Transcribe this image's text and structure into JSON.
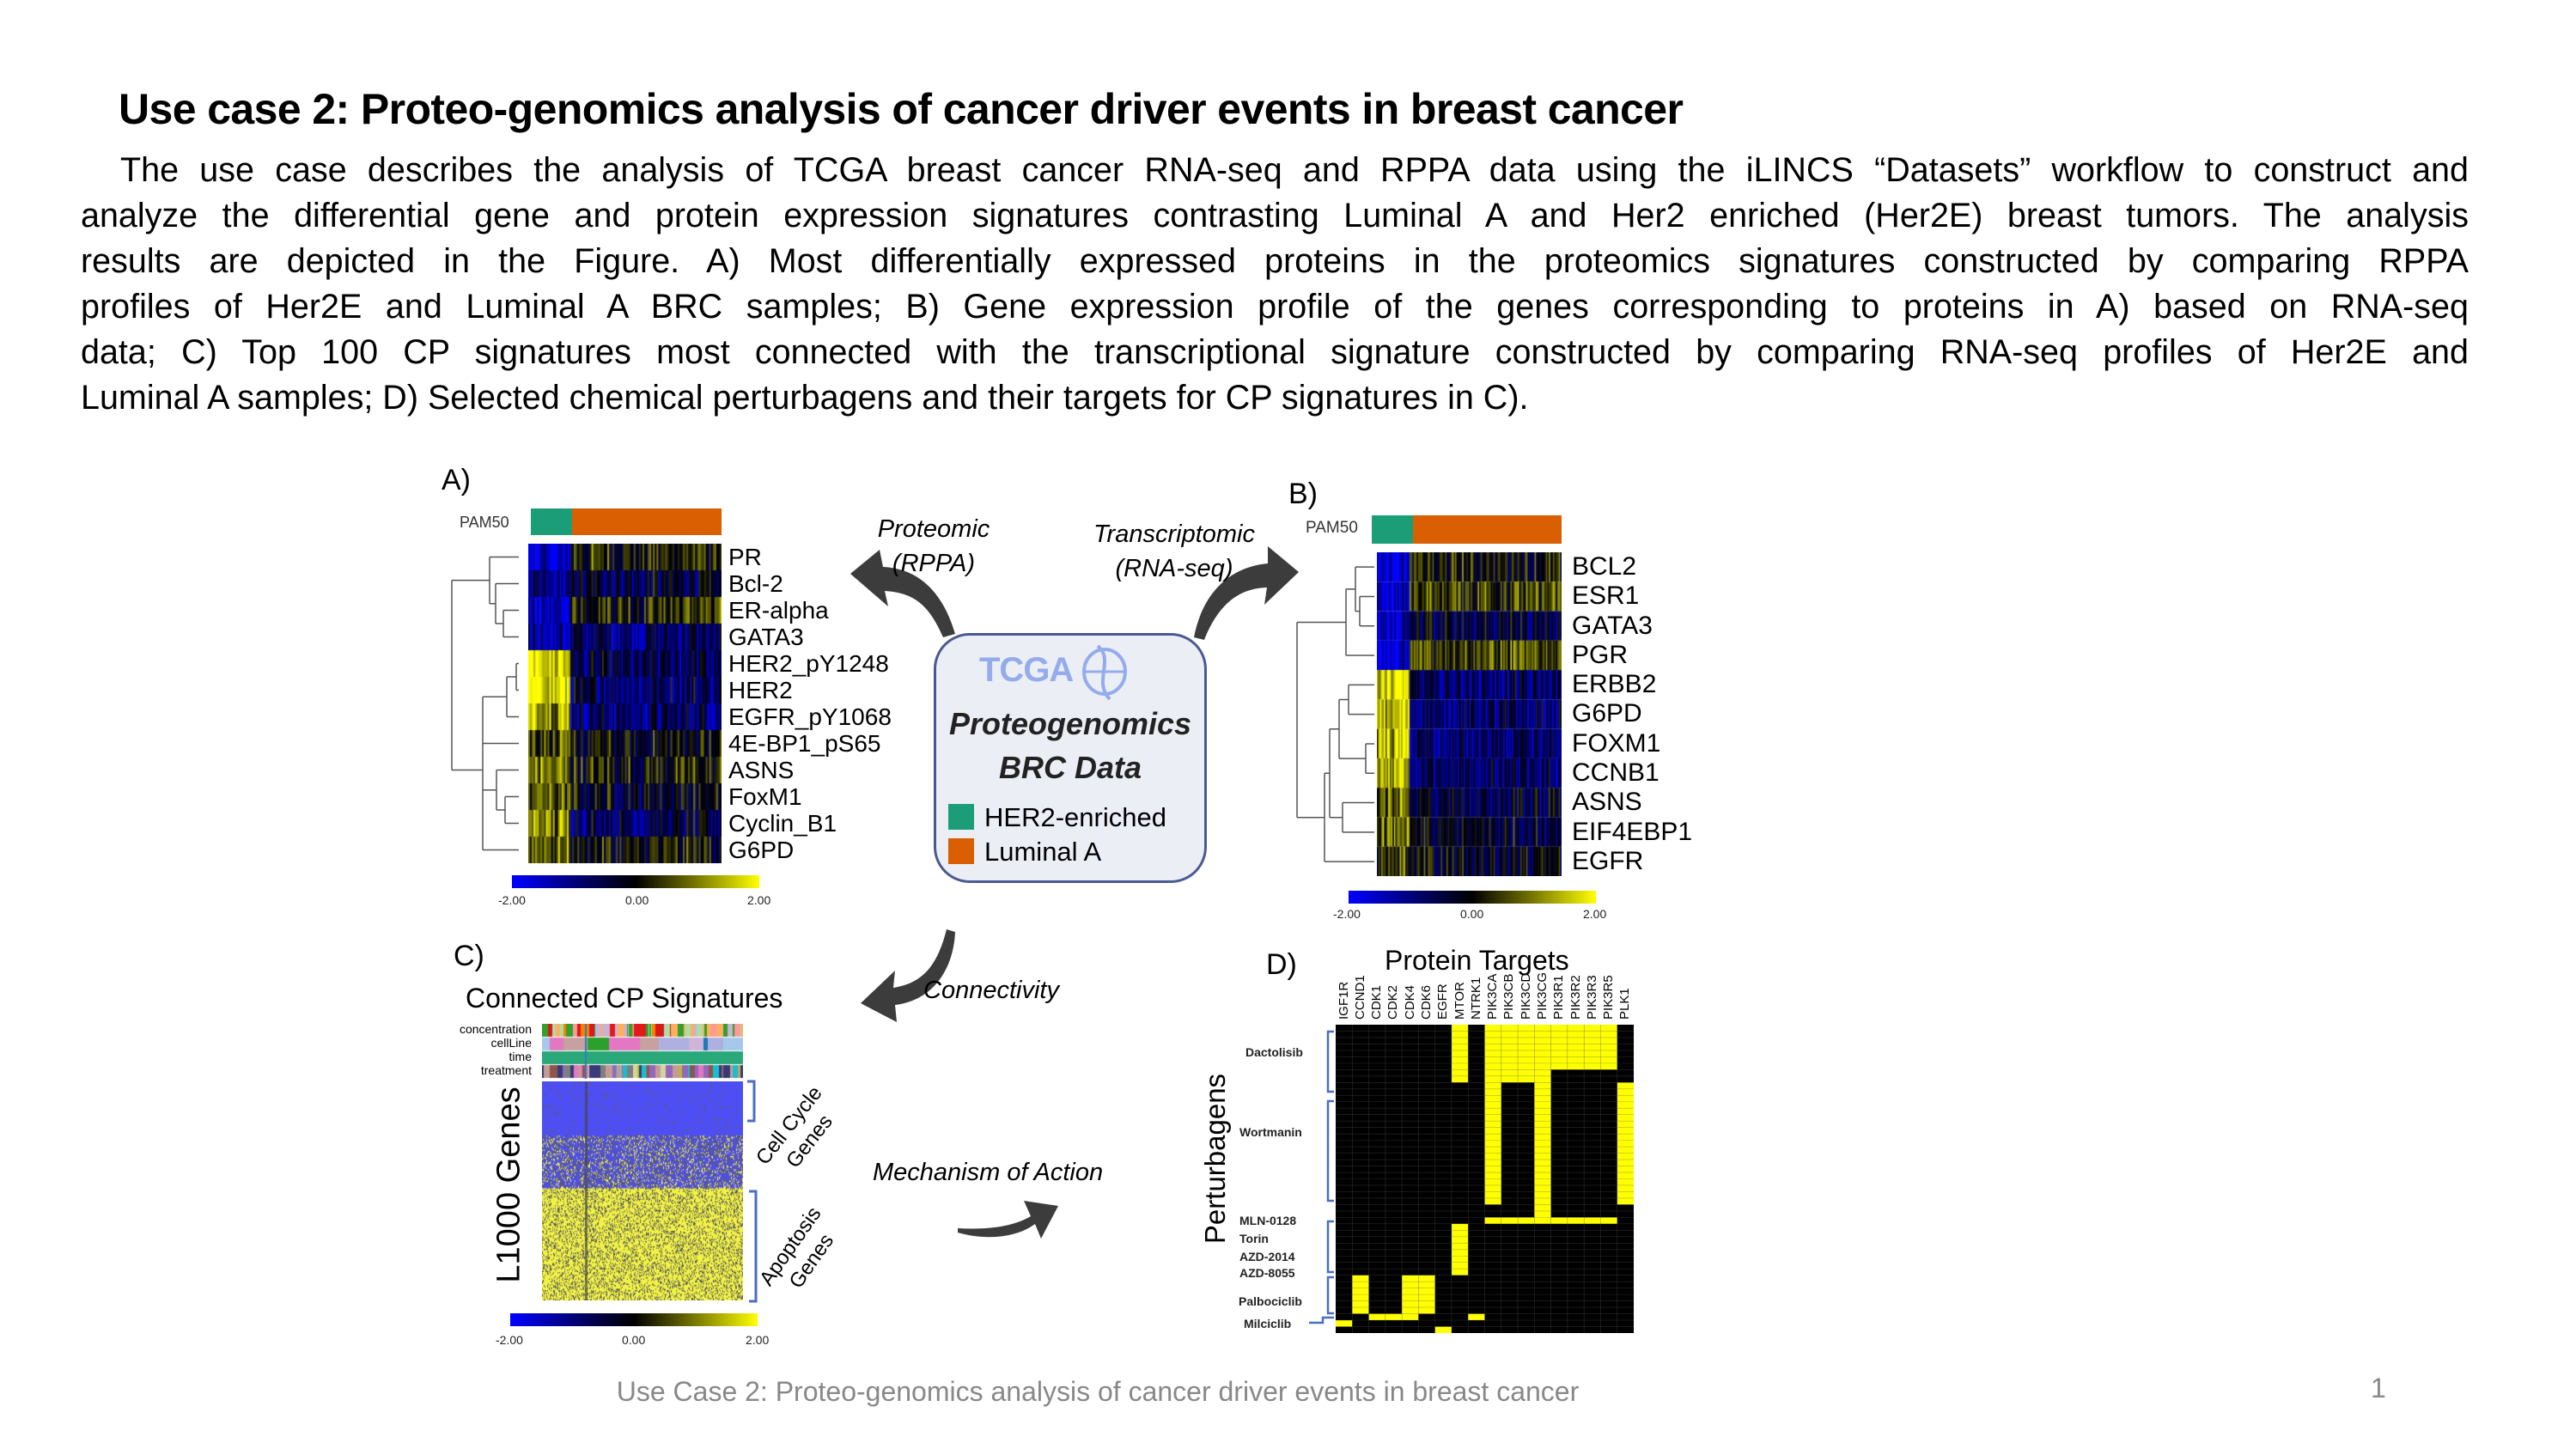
{
  "slide": {
    "title": "Use case 2: Proteo-genomics analysis of cancer driver events in breast cancer",
    "body_lines": [
      "The use case describes the analysis of TCGA breast cancer RNA-seq and RPPA data using the iLINCS “Datasets” workflow to construct and",
      "analyze the differential gene and protein expression signatures contrasting Luminal A and Her2 enriched (Her2E) breast tumors. The analysis",
      "results are depicted in the Figure. A) Most differentially expressed proteins in the proteomics signatures constructed by comparing RPPA",
      "profiles of Her2E and Luminal A BRC samples; B) Gene expression profile of the genes corresponding to proteins in A) based on RNA-seq",
      "data; C) Top 100 CP signatures most connected with the transcriptional signature constructed by comparing RNA-seq profiles of Her2E and",
      "Luminal A samples; D) Selected chemical perturbagens and their targets for CP signatures in C)."
    ],
    "footer": "Use Case 2: Proteo-genomics analysis of cancer driver events in breast cancer",
    "page_number": "1"
  },
  "figure": {
    "colors": {
      "her2_enriched": "#1b9e77",
      "luminal_a": "#d95f02",
      "low": "#0000ff",
      "mid": "#000000",
      "high": "#ffff00",
      "arrow": "#3c3c3c",
      "bracket": "#4a6fc0"
    },
    "arrows": {
      "proteomic": "Proteomic",
      "rppa": "(RPPA)",
      "transcriptomic": "Transcriptomic",
      "rnaseq": "(RNA-seq)",
      "connectivity": "Connectivity",
      "moa": "Mechanism of Action"
    },
    "center_box": {
      "logo": "TCGA",
      "title_line1": "Proteogenomics",
      "title_line2": "BRC Data",
      "legend": [
        {
          "label": "HER2-enriched",
          "color": "#1b9e77"
        },
        {
          "label": "Luminal A",
          "color": "#d95f02"
        }
      ]
    },
    "panel_a": {
      "label": "A)",
      "annotation": "PAM50",
      "rows": [
        "PR",
        "Bcl-2",
        "ER-alpha",
        "GATA3",
        "HER2_pY1248",
        "HER2",
        "EGFR_pY1068",
        "4E-BP1_pS65",
        "ASNS",
        "FoxM1",
        "Cyclin_B1",
        "G6PD"
      ],
      "colorbar": {
        "min": "-2.00",
        "mid": "0.00",
        "max": "2.00"
      }
    },
    "panel_b": {
      "label": "B)",
      "annotation": "PAM50",
      "rows": [
        "BCL2",
        "ESR1",
        "GATA3",
        "PGR",
        "ERBB2",
        "G6PD",
        "FOXM1",
        "CCNB1",
        "ASNS",
        "EIF4EBP1",
        "EGFR"
      ],
      "colorbar": {
        "min": "-2.00",
        "mid": "0.00",
        "max": "2.00"
      }
    },
    "panel_c": {
      "label": "C)",
      "title": "Connected CP Signatures",
      "annotations": [
        "concentration",
        "cellLine",
        "time",
        "treatment"
      ],
      "ylabel": "L1000 Genes",
      "groups": [
        {
          "line1": "Cell Cycle",
          "line2": "Genes"
        },
        {
          "line1": "Apoptosis",
          "line2": "Genes"
        }
      ],
      "colorbar": {
        "min": "-2.00",
        "mid": "0.00",
        "max": "2.00"
      }
    },
    "panel_d": {
      "label": "D)",
      "title": "Protein Targets",
      "ylabel": "Perturbagens",
      "columns": [
        "IGF1R",
        "CCND1",
        "CDK1",
        "CDK2",
        "CDK4",
        "CDK6",
        "EGFR",
        "MTOR",
        "NTRK1",
        "PIK3CA",
        "PIK3CB",
        "PIK3CD",
        "PIK3CG",
        "PIK3R1",
        "PIK3R2",
        "PIK3R3",
        "PIK3R5",
        "PLK1"
      ],
      "perturbagens": [
        "Dactolisib",
        "Wortmanin",
        "MLN-0128",
        "Torin",
        "AZD-2014",
        "AZD-8055",
        "Palbociclib",
        "Milciclib"
      ],
      "n_rows": 48,
      "target_rows": {
        "IGF1R": [
          [
            46,
            46
          ]
        ],
        "CCND1": [
          [
            39,
            44
          ]
        ],
        "CDK1": [
          [
            45,
            45
          ]
        ],
        "CDK2": [
          [
            45,
            45
          ]
        ],
        "CDK4": [
          [
            39,
            45
          ]
        ],
        "CDK6": [
          [
            39,
            44
          ]
        ],
        "EGFR": [
          [
            47,
            47
          ]
        ],
        "MTOR": [
          [
            0,
            8
          ],
          [
            31,
            38
          ]
        ],
        "NTRK1": [
          [
            45,
            45
          ]
        ],
        "PIK3CA": [
          [
            0,
            27
          ],
          [
            30,
            30
          ]
        ],
        "PIK3CB": [
          [
            0,
            8
          ],
          [
            30,
            30
          ]
        ],
        "PIK3CD": [
          [
            0,
            8
          ],
          [
            30,
            30
          ]
        ],
        "PIK3CG": [
          [
            0,
            30
          ]
        ],
        "PIK3R1": [
          [
            0,
            6
          ],
          [
            30,
            30
          ]
        ],
        "PIK3R2": [
          [
            0,
            6
          ],
          [
            30,
            30
          ]
        ],
        "PIK3R3": [
          [
            0,
            6
          ],
          [
            30,
            30
          ]
        ],
        "PIK3R5": [
          [
            0,
            6
          ],
          [
            30,
            30
          ]
        ],
        "PLK1": [
          [
            9,
            27
          ]
        ]
      }
    }
  }
}
